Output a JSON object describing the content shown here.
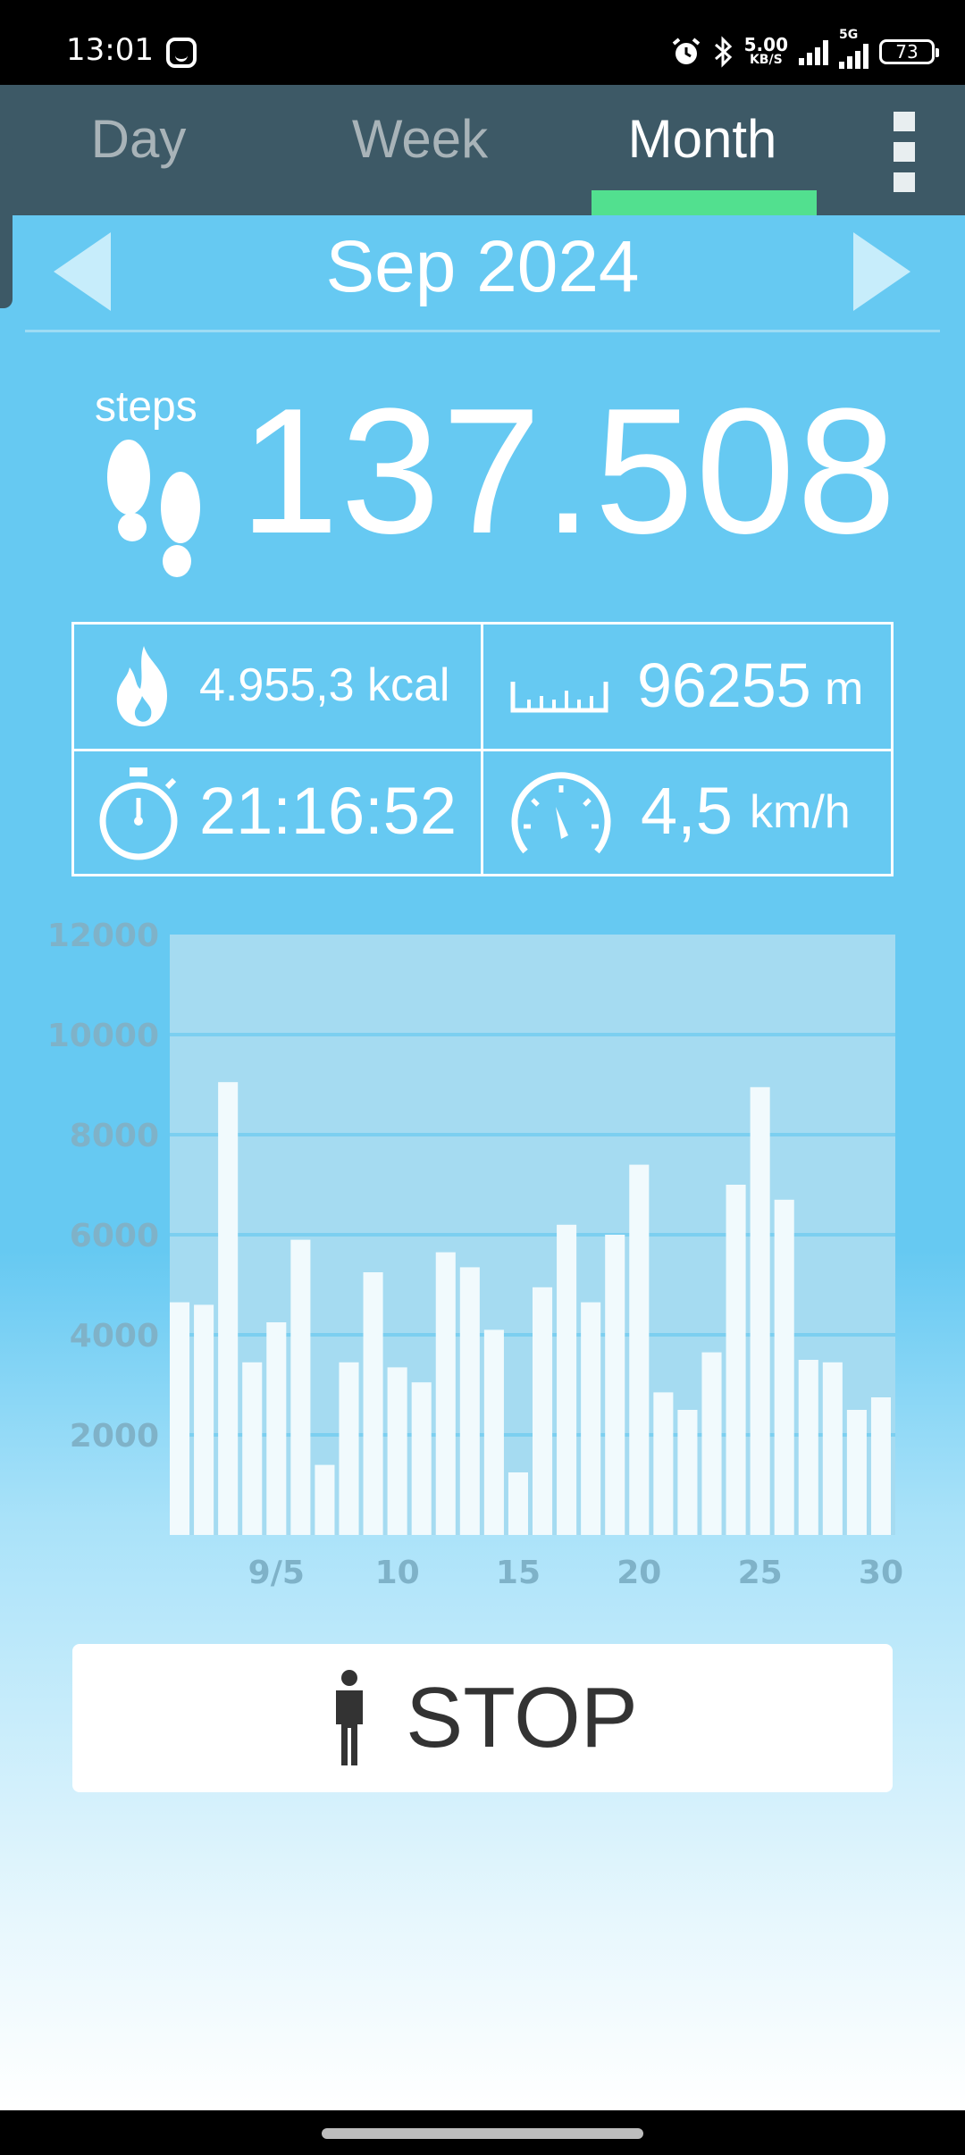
{
  "status_bar": {
    "time": "13:01",
    "net_speed": "5.00",
    "net_speed_unit": "KB/S",
    "network": "5G",
    "battery": "73",
    "icons": [
      "smiley-icon",
      "alarm-icon",
      "bluetooth-icon",
      "signal-icon",
      "signal-5g-icon",
      "battery-icon"
    ]
  },
  "tabs": [
    {
      "label": "Day",
      "active": false
    },
    {
      "label": "Week",
      "active": false
    },
    {
      "label": "Month",
      "active": true
    }
  ],
  "nav": {
    "month_label": "Sep 2024",
    "prev_icon": "triangle-left-icon",
    "next_icon": "triangle-right-icon"
  },
  "steps": {
    "label": "steps",
    "value": "137.508"
  },
  "stats": {
    "calories": "4.955,3 kcal",
    "distance_value": "96255",
    "distance_unit": "m",
    "duration": "21:16:52",
    "speed_value": "4,5",
    "speed_unit": "km/h"
  },
  "colors": {
    "background_top": "#66c9f2",
    "tabbar": "#3d5966",
    "tab_indicator": "#52e08f",
    "chart_panel": "#a5dbf1",
    "axis_text": "#7fb2c8"
  },
  "chart_data": {
    "type": "bar",
    "x": [
      1,
      2,
      3,
      4,
      5,
      6,
      7,
      8,
      9,
      10,
      11,
      12,
      13,
      14,
      15,
      16,
      17,
      18,
      19,
      20,
      21,
      22,
      23,
      24,
      25,
      26,
      27,
      28,
      29,
      30
    ],
    "values": [
      4650,
      4600,
      9050,
      3450,
      4250,
      5900,
      1400,
      3450,
      5250,
      3350,
      3050,
      5650,
      5350,
      4100,
      1250,
      4950,
      6200,
      4650,
      6000,
      7400,
      2850,
      2500,
      3650,
      7000,
      8950,
      6700,
      3500,
      3450,
      2500,
      2750
    ],
    "ylim": [
      0,
      12000
    ],
    "yticks": [
      "2000",
      "4000",
      "6000",
      "8000",
      "10000",
      "12000"
    ],
    "xticks": [
      {
        "day": 5,
        "label": "9/5"
      },
      {
        "day": 10,
        "label": "10"
      },
      {
        "day": 15,
        "label": "15"
      },
      {
        "day": 20,
        "label": "20"
      },
      {
        "day": 25,
        "label": "25"
      },
      {
        "day": 30,
        "label": "30"
      }
    ],
    "grid": true
  },
  "stop_button": {
    "label": "STOP",
    "icon": "person-icon"
  }
}
